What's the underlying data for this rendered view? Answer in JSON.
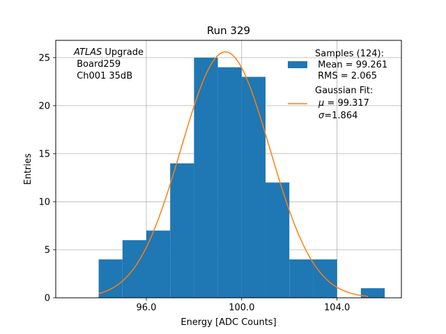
{
  "chart_data": {
    "type": "bar",
    "title": "Run 329",
    "xlabel": "Energy [ADC Counts]",
    "ylabel": "Entries",
    "xlim": [
      92.2,
      106.7
    ],
    "ylim": [
      0,
      26.8
    ],
    "xticks": [
      96,
      100,
      104
    ],
    "xtick_labels": [
      "96.0",
      "100.0",
      "104.0"
    ],
    "yticks": [
      0,
      5,
      10,
      15,
      20,
      25
    ],
    "ytick_labels": [
      "0",
      "5",
      "10",
      "15",
      "20",
      "25"
    ],
    "grid": true,
    "bin_edges": [
      94,
      95,
      96,
      97,
      98,
      99,
      100,
      101,
      102,
      103,
      104,
      105,
      106
    ],
    "counts": [
      4,
      6,
      7,
      14,
      25,
      24,
      23,
      12,
      4,
      4,
      0,
      1
    ],
    "bar_color": "#1f77b4",
    "fit": {
      "mu": 99.317,
      "sigma": 1.864,
      "amplitude": 25.6,
      "x_range": [
        94,
        105.3
      ],
      "color": "#ff7f0e"
    },
    "annotation": {
      "italic": "ATLAS",
      "rest": " Upgrade",
      "lines": [
        " Board259",
        " Ch001 35dB"
      ]
    },
    "legend": {
      "position": "top-right",
      "samples": {
        "header": "Samples (124):",
        "lines": [
          " Mean = 99.261",
          " RMS = 2.065"
        ]
      },
      "fit": {
        "header": "Gaussian Fit:",
        "mu_symbol": "μ",
        "mu_text": " = 99.317",
        "sigma_symbol": "σ",
        "sigma_text": "=1.864"
      }
    }
  }
}
